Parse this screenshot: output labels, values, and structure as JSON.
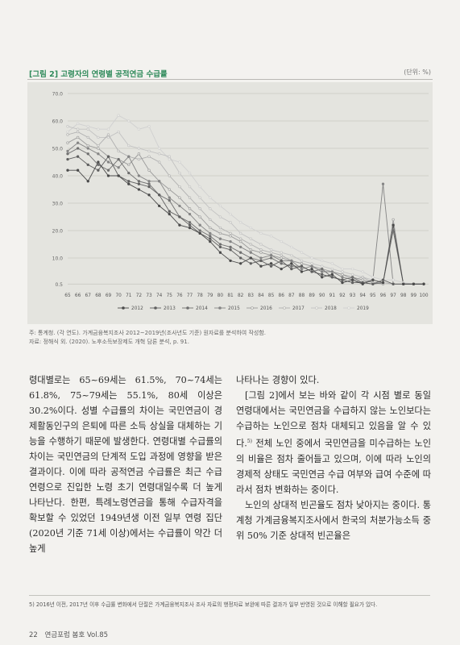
{
  "figure": {
    "title": "[그림 2] 고령자의 연령별 공적연금 수급률",
    "unit": "(단위: %)"
  },
  "chart_data": {
    "type": "line",
    "x": [
      "65",
      "66",
      "67",
      "68",
      "69",
      "70",
      "71",
      "72",
      "73",
      "74",
      "75",
      "76",
      "77",
      "78",
      "79",
      "80",
      "81",
      "82",
      "83",
      "84",
      "85",
      "86",
      "87",
      "88",
      "89",
      "90",
      "91",
      "92",
      "93",
      "94",
      "95",
      "96",
      "97",
      "98",
      "99",
      "100"
    ],
    "yticks": [
      "0.5",
      "10.0",
      "20.0",
      "30.0",
      "40.0",
      "50.0",
      "60.0",
      "70.0"
    ],
    "ylim": [
      0,
      70
    ],
    "grid": true,
    "legend_position": "bottom",
    "series": [
      {
        "name": "2012",
        "color": "#4a4a4a",
        "marker": "filled",
        "values": [
          42,
          42,
          38,
          45,
          40,
          40,
          37,
          35,
          33,
          29,
          26,
          22,
          21,
          19,
          16,
          12,
          9,
          8,
          10,
          7,
          8,
          6,
          8,
          5,
          6,
          3,
          4,
          1,
          2,
          0.5,
          2,
          1,
          22,
          0.5,
          0.5,
          0.5
        ]
      },
      {
        "name": "2013",
        "color": "#5f5f5f",
        "marker": "filled",
        "values": [
          46,
          47,
          44,
          42,
          47,
          40,
          38,
          37,
          36,
          33,
          27,
          25,
          22,
          19,
          17,
          14,
          13,
          10,
          8,
          9,
          7,
          9,
          6,
          7,
          5,
          4,
          3,
          2,
          1,
          1,
          0.5,
          2,
          0.5,
          0.5,
          0.5,
          0.5
        ]
      },
      {
        "name": "2014",
        "color": "#6f6f6f",
        "marker": "filled",
        "values": [
          48,
          50,
          48,
          44,
          42,
          46,
          41,
          38,
          37,
          33,
          31,
          25,
          23,
          20,
          18,
          15,
          14,
          12,
          10,
          9,
          10,
          8,
          7,
          7,
          5,
          6,
          3,
          2,
          3,
          1,
          0.5,
          1,
          20,
          0.5,
          0.5,
          0.5
        ]
      },
      {
        "name": "2015",
        "color": "#858585",
        "marker": "filled",
        "values": [
          49,
          52,
          50,
          48,
          45,
          43,
          47,
          40,
          38,
          38,
          32,
          29,
          26,
          22,
          19,
          17,
          16,
          14,
          12,
          10,
          11,
          9,
          9,
          6,
          7,
          5,
          5,
          3,
          2,
          1,
          2,
          37,
          0.5,
          0.5,
          0.5,
          0.5
        ]
      },
      {
        "name": "2016",
        "color": "#9a9a9a",
        "marker": "open",
        "values": [
          52,
          54,
          51,
          50,
          47,
          46,
          44,
          48,
          42,
          38,
          35,
          32,
          28,
          25,
          21,
          19,
          18,
          16,
          13,
          12,
          11,
          10,
          9,
          8,
          7,
          6,
          5,
          4,
          3,
          2,
          1,
          0.5,
          24,
          0.5,
          0.5,
          0.5
        ]
      },
      {
        "name": "2017",
        "color": "#b0b0b0",
        "marker": "open",
        "values": [
          55,
          56,
          54,
          51,
          55,
          49,
          47,
          46,
          47,
          45,
          40,
          36,
          32,
          28,
          24,
          21,
          19,
          17,
          15,
          13,
          12,
          11,
          9,
          8,
          7,
          5,
          5,
          4,
          2,
          3,
          1,
          1,
          0.5,
          0.5,
          0.5,
          0.5
        ]
      },
      {
        "name": "2018",
        "color": "#c2c2c2",
        "marker": "open",
        "values": [
          58,
          57,
          57,
          54,
          54,
          56,
          51,
          50,
          49,
          48,
          47,
          41,
          36,
          32,
          28,
          25,
          23,
          19,
          17,
          15,
          13,
          12,
          11,
          9,
          8,
          7,
          6,
          5,
          4,
          3,
          2,
          1,
          0.5,
          0.5,
          0.5,
          0.5
        ]
      },
      {
        "name": "2019",
        "color": "#d0d0d0",
        "marker": "open",
        "values": [
          56,
          59,
          58,
          57,
          57,
          62,
          60,
          57,
          58,
          50,
          46,
          45,
          41,
          36,
          32,
          29,
          26,
          23,
          21,
          19,
          18,
          16,
          14,
          12,
          10,
          9,
          8,
          6,
          6,
          5,
          3,
          2,
          2,
          1,
          0.5,
          0.5
        ]
      }
    ]
  },
  "notes": {
    "source": "주: 통계청. (각 연도). 가계금융복지조사 2012~2019년(조사년도 기준) 원자료를 분석하여 작성함.",
    "ref": "자료: 정해식 외. (2020). 노후소득보장제도 개혁 담론 분석, p. 91."
  },
  "body": {
    "left": [
      "령대별로는 65~69세는 61.5%, 70~74세는 61.8%, 75~79세는 55.1%, 80세 이상은 30.2%이다. 성별 수급률의 차이는 국민연금이 경제활동인구의 은퇴에 따른 소득 상실을 대체하는 기능을 수행하기 때문에 발생한다. 연령대별 수급률의 차이는 국민연금의 단계적 도입 과정에 영향을 받은 결과이다. 이에 따라 공적연금 수급률은 최근 수급 연령으로 진입한 노령 초기 연령대일수록 더 높게 나타난다. 한편, 특례노령연금을 통해 수급자격을 확보할 수 있었던 1949년생 이전 일부 연령 집단(2020년 기준 71세 이상)에서는 수급률이 약간 더 높게"
    ],
    "right_p1": "나타나는 경향이 있다.",
    "right_p2": "[그림 2]에서 보는 바와 같이 각 시점 별로 동일 연령대에서는 국민연금을 수급하지 않는 노인보다는 수급하는 노인으로 점차 대체되고 있음을 알 수 있다.",
    "right_p2_sup": "5)",
    "right_p2b": " 전체 노인 중에서 국민연금을 미수급하는 노인의 비율은 점차 줄어들고 있으며, 이에 따라 노인의 경제적 상태도 국민연금 수급 여부와 급여 수준에 따라서 점차 변화하는 중이다.",
    "right_p3": "노인의 상대적 빈곤율도 점차 낮아지는 중이다. 통계청 가계금융복지조사에서 한국의 처분가능소득 중위 50% 기준 상대적 빈곤율은"
  },
  "footnote": "5) 2016년 이전, 2017년 이후 수급률 변화에서 단절은 가계금융복지조사 조사 자료의 행정자료 보완에 따른 결과가 일부 반영된 것으로 이해할 필요가 있다.",
  "folio": {
    "page": "22",
    "journal": "연금포럼 봄호 Vol.85"
  }
}
